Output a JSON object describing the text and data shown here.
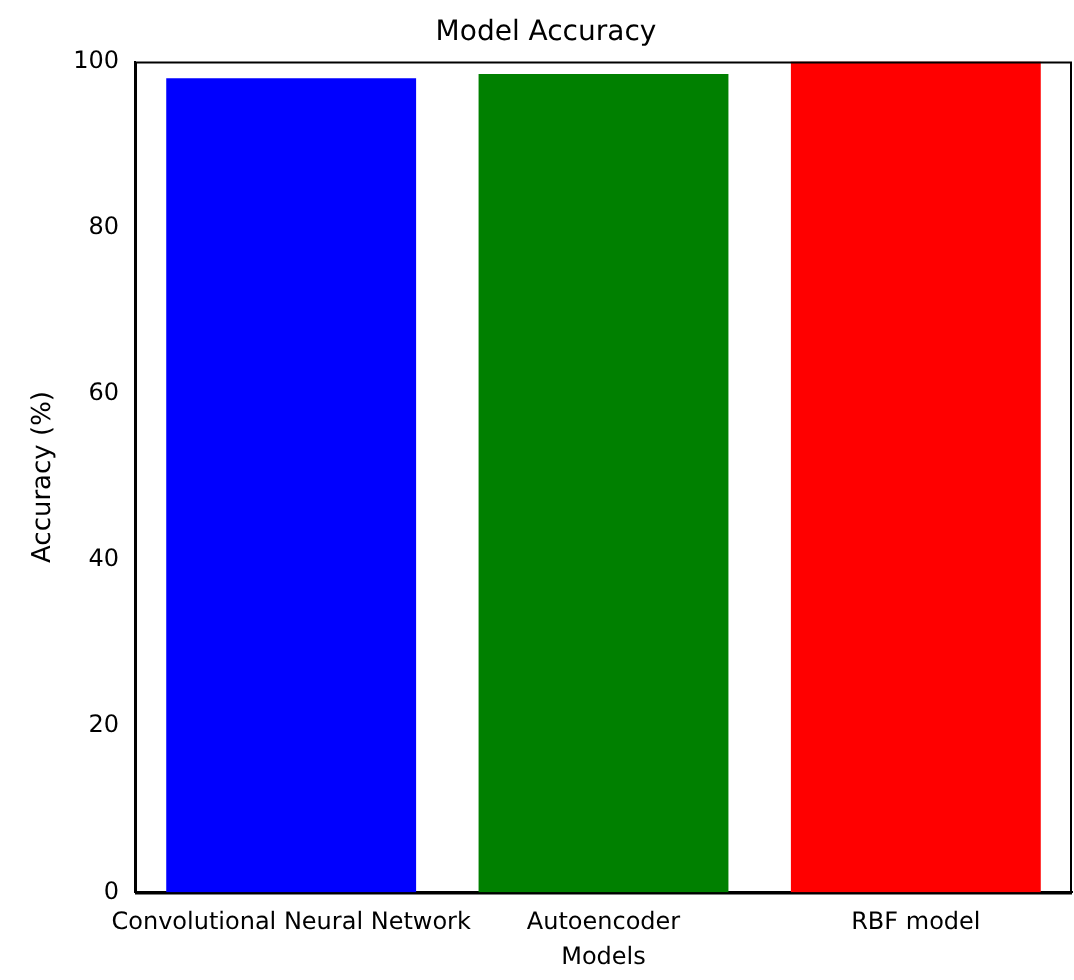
{
  "chart_data": {
    "type": "bar",
    "title": "Model Accuracy",
    "xlabel": "Models",
    "ylabel": "Accuracy (%)",
    "categories": [
      "Convolutional Neural Network",
      "Autoencoder",
      "RBF model"
    ],
    "values": [
      98.0,
      98.5,
      100
    ],
    "colors": [
      "#0000ff",
      "#008000",
      "#ff0000"
    ],
    "ylim": [
      0,
      100
    ],
    "yticks": [
      0,
      20,
      40,
      60,
      80,
      100
    ],
    "grid": false,
    "legend": false
  }
}
